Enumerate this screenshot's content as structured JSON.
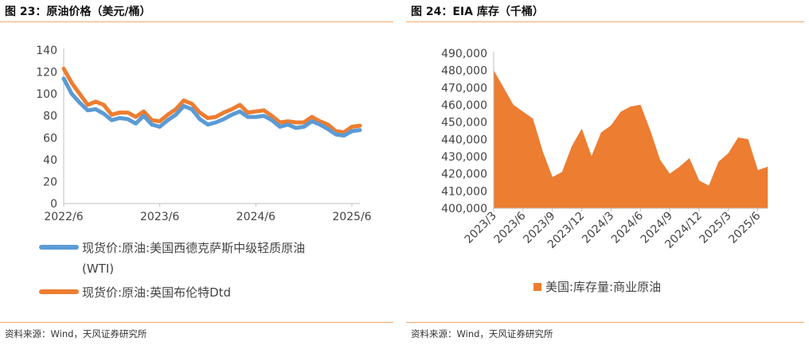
{
  "figures": [
    {
      "title": "图 23：原油价格（美元/桶）",
      "source": "资料来源：Wind，天风证券研究所"
    },
    {
      "title": "图 24：EIA 库存（千桶）",
      "source": "资料来源：Wind，天风证券研究所"
    }
  ],
  "chart_data": [
    {
      "type": "line",
      "title": "",
      "xlabel": "",
      "ylabel": "",
      "ylim": [
        0,
        140
      ],
      "yticks": [
        "0",
        "20",
        "40",
        "60",
        "80",
        "100",
        "120",
        "140"
      ],
      "xticks": [
        "2022/6",
        "2023/6",
        "2024/6",
        "2025/6"
      ],
      "xlim": [
        "2022-06",
        "2025-07"
      ],
      "grid": false,
      "legend_position": "bottom",
      "series": [
        {
          "name": "现货价:原油:美国西德克萨斯中级轻质原油(WTI)",
          "legend_lines": [
            "现货价:原油:美国西德克萨斯中级轻质原油",
            "(WTI)"
          ],
          "color": "#5b9bd5",
          "x": [
            "2022-06",
            "2022-07",
            "2022-08",
            "2022-09",
            "2022-10",
            "2022-11",
            "2022-12",
            "2023-01",
            "2023-02",
            "2023-03",
            "2023-04",
            "2023-05",
            "2023-06",
            "2023-07",
            "2023-08",
            "2023-09",
            "2023-10",
            "2023-11",
            "2023-12",
            "2024-01",
            "2024-02",
            "2024-03",
            "2024-04",
            "2024-05",
            "2024-06",
            "2024-07",
            "2024-08",
            "2024-09",
            "2024-10",
            "2024-11",
            "2024-12",
            "2025-01",
            "2025-02",
            "2025-03",
            "2025-04",
            "2025-05",
            "2025-06",
            "2025-07"
          ],
          "values": [
            114,
            100,
            92,
            85,
            86,
            82,
            76,
            78,
            77,
            73,
            80,
            72,
            70,
            76,
            81,
            89,
            86,
            77,
            72,
            74,
            77,
            81,
            84,
            79,
            79,
            80,
            76,
            70,
            72,
            69,
            70,
            75,
            72,
            68,
            63,
            62,
            66,
            67
          ]
        },
        {
          "name": "现货价:原油:英国布伦特Dtd",
          "legend_lines": [
            "现货价:原油:英国布伦特Dtd"
          ],
          "color": "#ed7d31",
          "x": [
            "2022-06",
            "2022-07",
            "2022-08",
            "2022-09",
            "2022-10",
            "2022-11",
            "2022-12",
            "2023-01",
            "2023-02",
            "2023-03",
            "2023-04",
            "2023-05",
            "2023-06",
            "2023-07",
            "2023-08",
            "2023-09",
            "2023-10",
            "2023-11",
            "2023-12",
            "2024-01",
            "2024-02",
            "2024-03",
            "2024-04",
            "2024-05",
            "2024-06",
            "2024-07",
            "2024-08",
            "2024-09",
            "2024-10",
            "2024-11",
            "2024-12",
            "2025-01",
            "2025-02",
            "2025-03",
            "2025-04",
            "2025-05",
            "2025-06",
            "2025-07"
          ],
          "values": [
            123,
            110,
            100,
            90,
            93,
            90,
            81,
            83,
            83,
            79,
            84,
            76,
            75,
            81,
            86,
            94,
            91,
            83,
            78,
            79,
            83,
            86,
            90,
            83,
            84,
            85,
            80,
            74,
            75,
            74,
            74,
            79,
            75,
            72,
            66,
            65,
            70,
            71
          ]
        }
      ]
    },
    {
      "type": "area",
      "title": "",
      "xlabel": "",
      "ylabel": "",
      "ylim": [
        400000,
        490000
      ],
      "yticks": [
        "400,000",
        "410,000",
        "420,000",
        "430,000",
        "440,000",
        "450,000",
        "460,000",
        "470,000",
        "480,000",
        "490,000"
      ],
      "xticks": [
        "2023/3",
        "2023/6",
        "2023/9",
        "2023/12",
        "2024/3",
        "2024/6",
        "2024/9",
        "2024/12",
        "2025/3",
        "2025/6"
      ],
      "xlim": [
        "2023-03",
        "2025-07"
      ],
      "grid": false,
      "legend_position": "bottom",
      "series": [
        {
          "name": "美国:库存量:商业原油",
          "color": "#ed7d31",
          "x": [
            "2023-03",
            "2023-04",
            "2023-05",
            "2023-06",
            "2023-07",
            "2023-08",
            "2023-09",
            "2023-10",
            "2023-11",
            "2023-12",
            "2024-01",
            "2024-02",
            "2024-03",
            "2024-04",
            "2024-05",
            "2024-06",
            "2024-07",
            "2024-08",
            "2024-09",
            "2024-10",
            "2024-11",
            "2024-12",
            "2025-01",
            "2025-02",
            "2025-03",
            "2025-04",
            "2025-05",
            "2025-06",
            "2025-07"
          ],
          "values": [
            480000,
            470000,
            460000,
            456000,
            452000,
            433000,
            418000,
            421000,
            436000,
            446000,
            430000,
            444000,
            448000,
            456000,
            459000,
            460000,
            445000,
            428000,
            420000,
            424000,
            429000,
            416000,
            413000,
            427000,
            432000,
            441000,
            440000,
            422000,
            424000
          ]
        }
      ]
    }
  ]
}
